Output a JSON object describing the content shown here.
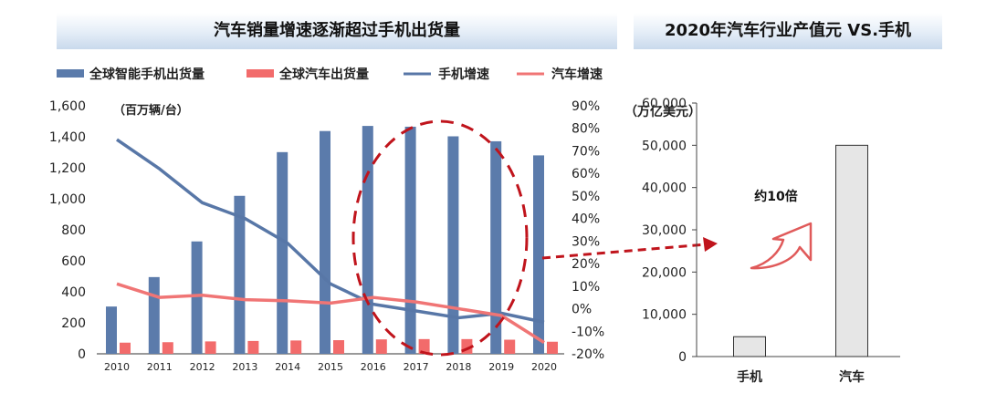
{
  "chart_data": [
    {
      "type": "bar",
      "title": "汽车销量增速逐渐超过手机出货量",
      "unit_label": "（百万辆/台）",
      "categories": [
        "2010",
        "2011",
        "2012",
        "2013",
        "2014",
        "2015",
        "2016",
        "2017",
        "2018",
        "2019",
        "2020"
      ],
      "series": [
        {
          "name": "全球智能手机出货量",
          "kind": "bar",
          "axis": "left",
          "color": "#5b7bab",
          "values": [
            305,
            495,
            725,
            1019,
            1301,
            1437,
            1470,
            1465,
            1403,
            1371,
            1280
          ]
        },
        {
          "name": "全球汽车出货量",
          "kind": "bar",
          "axis": "left",
          "color": "#f26b6b",
          "values": [
            72,
            75,
            80,
            83,
            86,
            88,
            93,
            95,
            95,
            91,
            78
          ]
        },
        {
          "name": "手机增速",
          "kind": "line",
          "axis": "right",
          "color": "#5877a7",
          "values": [
            75,
            62,
            47,
            40,
            29,
            11,
            2,
            -1,
            -4,
            -2,
            -6
          ]
        },
        {
          "name": "汽车增速",
          "kind": "line",
          "axis": "right",
          "color": "#f07575",
          "values": [
            11,
            5,
            6,
            4,
            3.5,
            2.5,
            5,
            3,
            0,
            -3,
            -15
          ]
        }
      ],
      "ylim_left": [
        0,
        1600
      ],
      "yticks_left": [
        "0",
        "200",
        "400",
        "600",
        "800",
        "1,000",
        "1,200",
        "1,400",
        "1,600"
      ],
      "ylim_right": [
        -20,
        90
      ],
      "yticks_right": [
        "-20%",
        "-10%",
        "0%",
        "10%",
        "20%",
        "30%",
        "40%",
        "50%",
        "60%",
        "70%",
        "80%",
        "90%"
      ],
      "grid": false,
      "legend_position": "top",
      "annotation": "dashed red ellipse over 2016-2019 with dashed arrow pointing to right panel",
      "annotation_color": "#c0141c"
    },
    {
      "type": "bar",
      "title": "2020年汽车行业产值元 VS.手机",
      "unit_label": "（万亿美元）",
      "categories": [
        "手机",
        "汽车"
      ],
      "values": [
        4700,
        50000
      ],
      "bar_color": "#e6e6e6",
      "ylim": [
        0,
        60000
      ],
      "yticks": [
        "0",
        "10,000",
        "20,000",
        "30,000",
        "40,000",
        "50,000",
        "60,000"
      ],
      "annotation": "约10倍",
      "grid": false
    }
  ],
  "stray_mark": "▯"
}
